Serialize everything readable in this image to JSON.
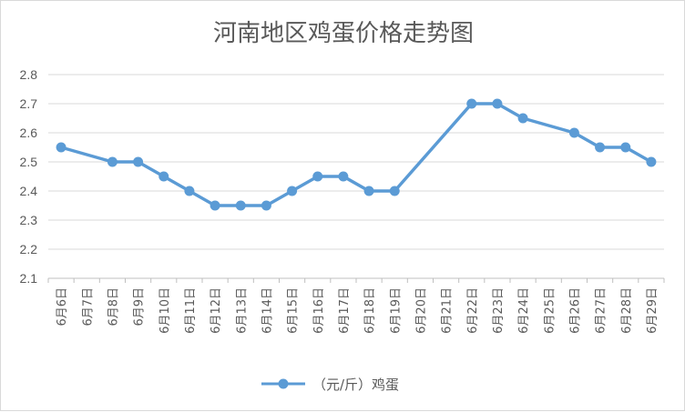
{
  "chart_data": {
    "type": "line",
    "title": "河南地区鸡蛋价格走势图",
    "xlabel": "",
    "ylabel": "",
    "ylim": [
      2.1,
      2.8
    ],
    "yticks": [
      "2.1",
      "2.2",
      "2.3",
      "2.4",
      "2.5",
      "2.6",
      "2.7",
      "2.8"
    ],
    "grid": true,
    "legend": "bottom",
    "categories": [
      "6月6日",
      "6月7日",
      "6月8日",
      "6月9日",
      "6月10日",
      "6月11日",
      "6月12日",
      "6月13日",
      "6月14日",
      "6月15日",
      "6月16日",
      "6月17日",
      "6月18日",
      "6月19日",
      "6月20日",
      "6月21日",
      "6月22日",
      "6月23日",
      "6月24日",
      "6月25日",
      "6月26日",
      "6月27日",
      "6月28日",
      "6月29日"
    ],
    "series": [
      {
        "name": "（元/斤）鸡蛋",
        "color": "#5b9bd5",
        "values": [
          2.55,
          null,
          2.5,
          2.5,
          2.45,
          2.4,
          2.35,
          2.35,
          2.35,
          2.4,
          2.45,
          2.45,
          2.4,
          2.4,
          null,
          null,
          2.7,
          2.7,
          2.65,
          null,
          2.6,
          2.55,
          2.55,
          2.5
        ]
      }
    ]
  }
}
